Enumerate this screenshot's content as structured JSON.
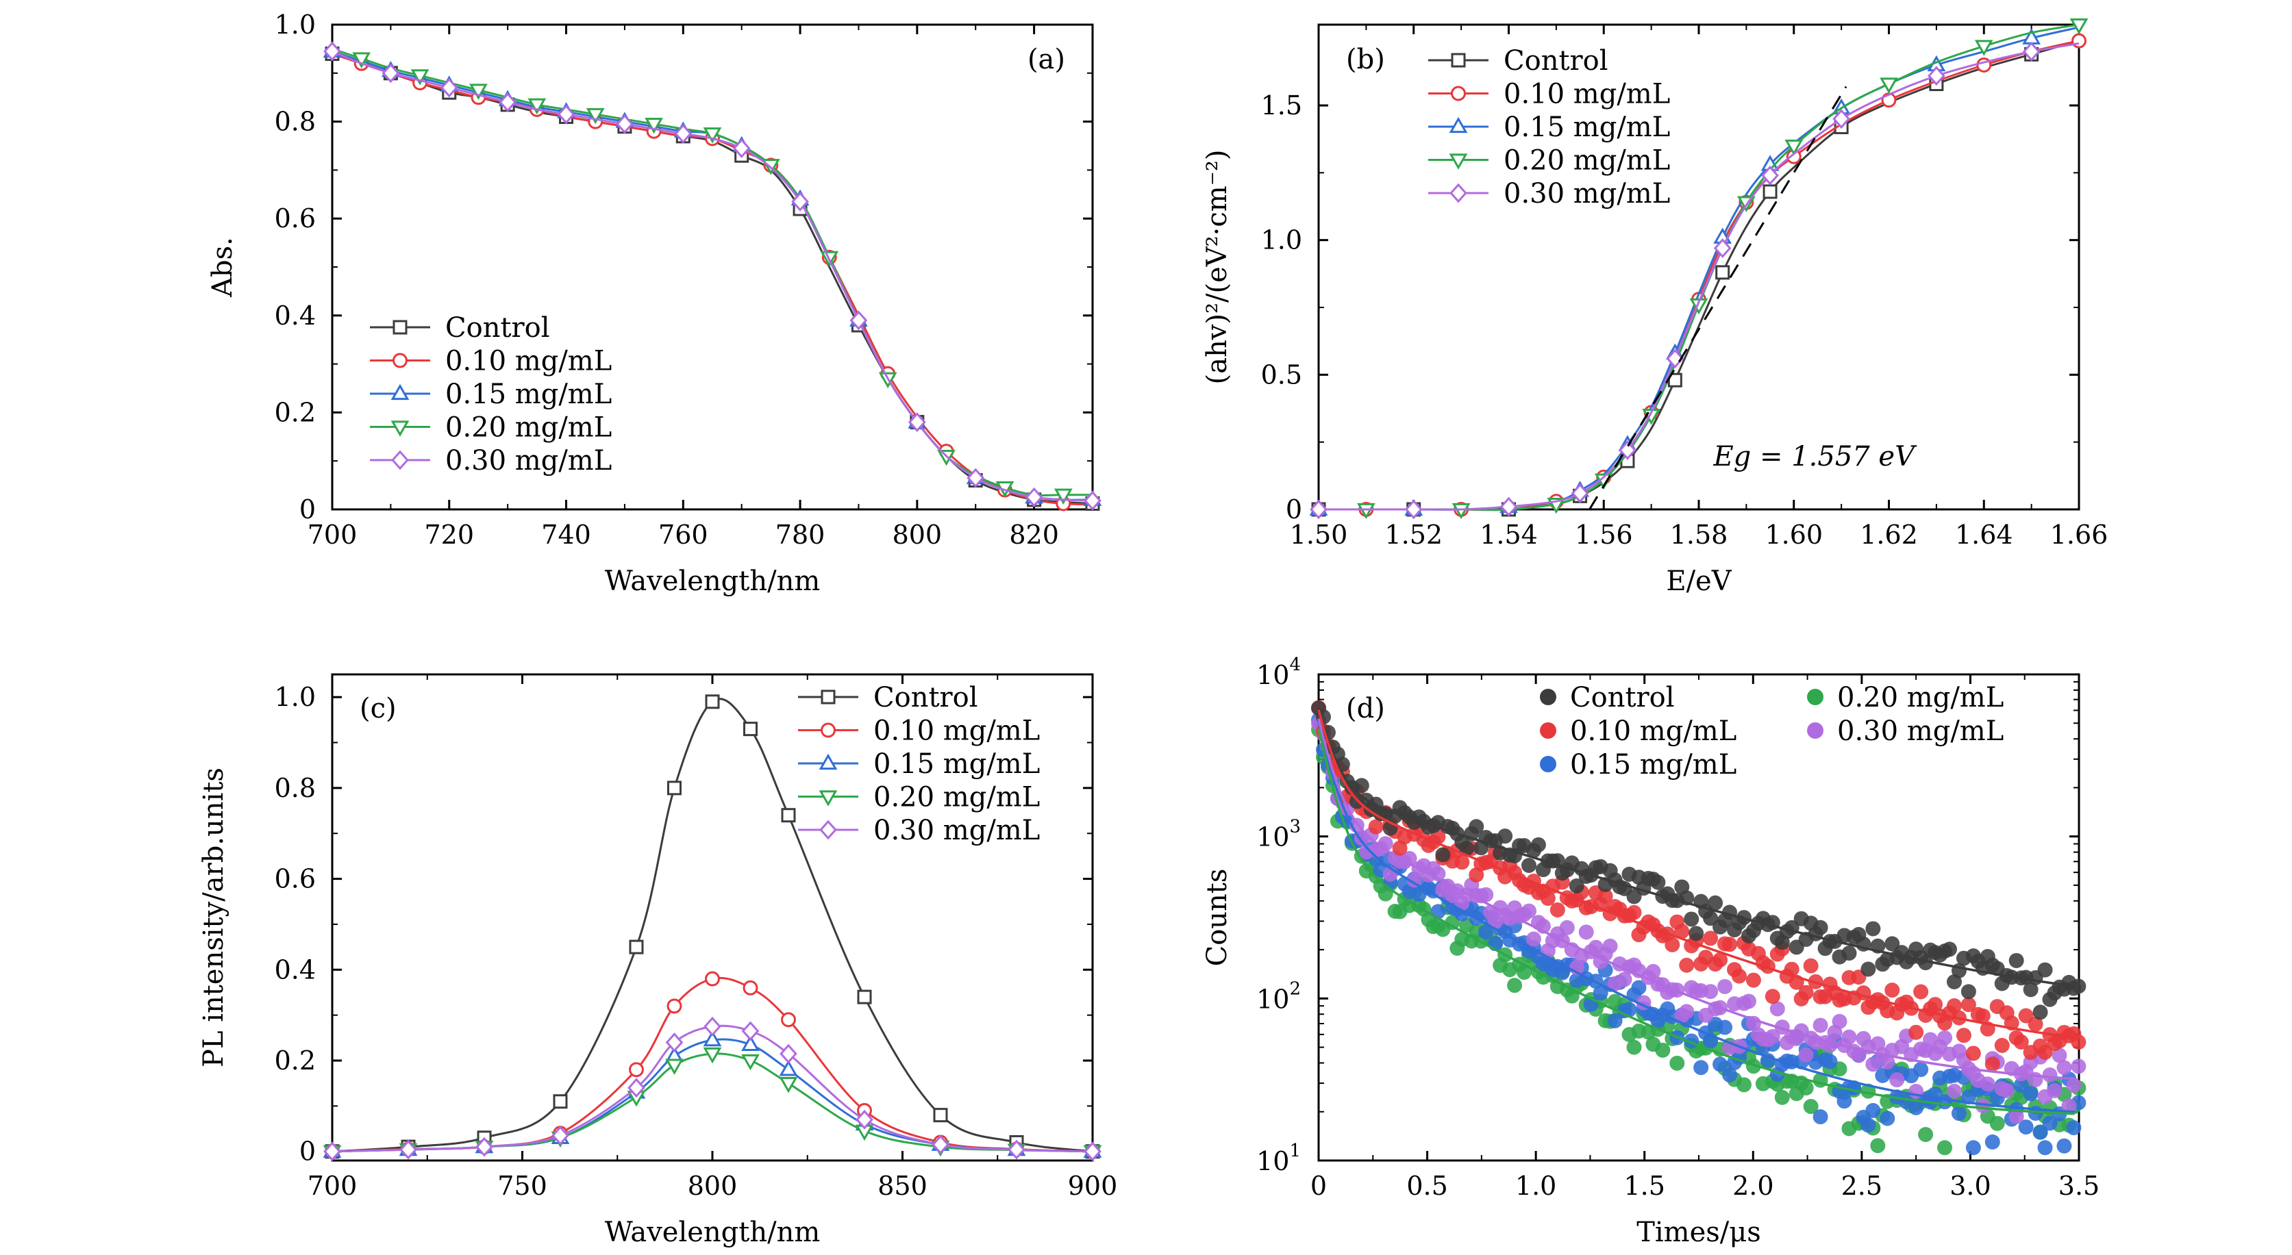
{
  "legend_labels": [
    "Control",
    "0.10 mg/mL",
    "0.15 mg/mL",
    "0.20 mg/mL",
    "0.30 mg/mL"
  ],
  "colors": {
    "Control": "#3c3c3c",
    "0.10 mg/mL": "#e8373a",
    "0.15 mg/mL": "#2f6fd6",
    "0.20 mg/mL": "#2ea84a",
    "0.30 mg/mL": "#b06be0"
  },
  "chart_data": [
    {
      "panel": "(a)",
      "type": "line",
      "xlabel": "Wavelength/nm",
      "ylabel": "Abs.",
      "xlim": [
        700,
        830
      ],
      "ylim": [
        0,
        1.0
      ],
      "xticks": [
        "700",
        "720",
        "740",
        "760",
        "780",
        "800",
        "820"
      ],
      "yticks": [
        "0",
        "0.2",
        "0.4",
        "0.6",
        "0.8",
        "1.0"
      ],
      "x": [
        700,
        705,
        710,
        715,
        720,
        725,
        730,
        735,
        740,
        745,
        750,
        755,
        760,
        765,
        770,
        775,
        780,
        785,
        790,
        795,
        800,
        805,
        810,
        815,
        820,
        825,
        830
      ],
      "series": [
        {
          "name": "Control",
          "values": [
            0.94,
            0.92,
            0.9,
            0.88,
            0.86,
            0.85,
            0.835,
            0.82,
            0.81,
            0.8,
            0.79,
            0.78,
            0.77,
            0.76,
            0.73,
            0.7,
            0.62,
            0.5,
            0.38,
            0.27,
            0.18,
            0.11,
            0.06,
            0.035,
            0.02,
            0.015,
            0.012
          ]
        },
        {
          "name": "0.10 mg/mL",
          "values": [
            0.94,
            0.92,
            0.9,
            0.88,
            0.865,
            0.85,
            0.84,
            0.825,
            0.81,
            0.8,
            0.79,
            0.78,
            0.77,
            0.765,
            0.74,
            0.71,
            0.64,
            0.52,
            0.4,
            0.28,
            0.19,
            0.12,
            0.07,
            0.04,
            0.02,
            0.012,
            0.01
          ]
        },
        {
          "name": "0.15 mg/mL",
          "values": [
            0.945,
            0.925,
            0.905,
            0.89,
            0.875,
            0.86,
            0.845,
            0.83,
            0.82,
            0.81,
            0.8,
            0.79,
            0.78,
            0.775,
            0.75,
            0.71,
            0.64,
            0.52,
            0.39,
            0.27,
            0.18,
            0.11,
            0.065,
            0.04,
            0.025,
            0.02,
            0.02
          ]
        },
        {
          "name": "0.20 mg/mL",
          "values": [
            0.95,
            0.93,
            0.91,
            0.895,
            0.88,
            0.865,
            0.85,
            0.835,
            0.825,
            0.815,
            0.805,
            0.795,
            0.785,
            0.775,
            0.75,
            0.71,
            0.64,
            0.52,
            0.39,
            0.27,
            0.18,
            0.11,
            0.07,
            0.045,
            0.03,
            0.03,
            0.03
          ]
        },
        {
          "name": "0.30 mg/mL",
          "values": [
            0.945,
            0.92,
            0.9,
            0.885,
            0.87,
            0.855,
            0.84,
            0.825,
            0.815,
            0.805,
            0.795,
            0.785,
            0.775,
            0.765,
            0.745,
            0.705,
            0.635,
            0.515,
            0.39,
            0.27,
            0.18,
            0.11,
            0.065,
            0.04,
            0.025,
            0.02,
            0.018
          ]
        }
      ]
    },
    {
      "panel": "(b)",
      "type": "line",
      "xlabel": "E/eV",
      "ylabel": "(ahv)²/(eV²·cm⁻²)",
      "xlim": [
        1.5,
        1.66
      ],
      "ylim": [
        0,
        1.8
      ],
      "xticks": [
        "1.50",
        "1.52",
        "1.54",
        "1.56",
        "1.58",
        "1.60",
        "1.62",
        "1.64",
        "1.66"
      ],
      "yticks": [
        "0",
        "0.5",
        "1.0",
        "1.5"
      ],
      "annotation": "Eg = 1.557 eV",
      "x": [
        1.5,
        1.51,
        1.52,
        1.53,
        1.54,
        1.55,
        1.555,
        1.56,
        1.565,
        1.57,
        1.575,
        1.58,
        1.585,
        1.59,
        1.595,
        1.6,
        1.61,
        1.62,
        1.63,
        1.64,
        1.65,
        1.66
      ],
      "series": [
        {
          "name": "Control",
          "values": [
            0,
            0,
            0,
            0,
            0,
            0.02,
            0.05,
            0.1,
            0.18,
            0.3,
            0.48,
            0.68,
            0.88,
            1.05,
            1.18,
            1.27,
            1.42,
            1.51,
            1.58,
            1.64,
            1.69,
            1.74
          ]
        },
        {
          "name": "0.10 mg/mL",
          "values": [
            0,
            0,
            0,
            0,
            0,
            0.03,
            0.06,
            0.12,
            0.22,
            0.36,
            0.56,
            0.78,
            0.99,
            1.14,
            1.24,
            1.31,
            1.43,
            1.52,
            1.59,
            1.65,
            1.7,
            1.74
          ]
        },
        {
          "name": "0.15 mg/mL",
          "values": [
            0,
            0,
            0,
            0,
            0.01,
            0.03,
            0.07,
            0.13,
            0.24,
            0.38,
            0.58,
            0.8,
            1.01,
            1.17,
            1.28,
            1.36,
            1.49,
            1.58,
            1.65,
            1.7,
            1.75,
            1.79
          ]
        },
        {
          "name": "0.20 mg/mL",
          "values": [
            0,
            0,
            0,
            0,
            0,
            0.02,
            0.05,
            0.11,
            0.21,
            0.35,
            0.54,
            0.76,
            0.97,
            1.14,
            1.26,
            1.35,
            1.49,
            1.58,
            1.66,
            1.72,
            1.77,
            1.8
          ]
        },
        {
          "name": "0.30 mg/mL",
          "values": [
            0,
            0,
            0,
            0,
            0.01,
            0.03,
            0.06,
            0.12,
            0.22,
            0.36,
            0.56,
            0.77,
            0.97,
            1.13,
            1.24,
            1.32,
            1.45,
            1.54,
            1.61,
            1.66,
            1.7,
            1.73
          ]
        }
      ],
      "fit_line": {
        "x": [
          1.557,
          1.611
        ],
        "y": [
          0,
          1.57
        ]
      }
    },
    {
      "panel": "(c)",
      "type": "line",
      "xlabel": "Wavelength/nm",
      "ylabel": "PL intensity/arb.units",
      "xlim": [
        700,
        900
      ],
      "ylim": [
        0,
        1.05
      ],
      "xticks": [
        "700",
        "750",
        "800",
        "850",
        "900"
      ],
      "yticks": [
        "0",
        "0.2",
        "0.4",
        "0.6",
        "0.8",
        "1.0"
      ],
      "x": [
        700,
        720,
        740,
        760,
        780,
        790,
        800,
        810,
        820,
        840,
        860,
        880,
        900
      ],
      "series": [
        {
          "name": "Control",
          "values": [
            0.0,
            0.01,
            0.03,
            0.11,
            0.45,
            0.8,
            0.99,
            0.93,
            0.74,
            0.34,
            0.08,
            0.02,
            0.0
          ]
        },
        {
          "name": "0.10 mg/mL",
          "values": [
            0.0,
            0.005,
            0.01,
            0.04,
            0.18,
            0.32,
            0.38,
            0.36,
            0.29,
            0.09,
            0.02,
            0.005,
            0.0
          ]
        },
        {
          "name": "0.15 mg/mL",
          "values": [
            0.0,
            0.004,
            0.01,
            0.03,
            0.13,
            0.21,
            0.245,
            0.235,
            0.18,
            0.06,
            0.015,
            0.004,
            0.0
          ]
        },
        {
          "name": "0.20 mg/mL",
          "values": [
            0.0,
            0.004,
            0.01,
            0.03,
            0.12,
            0.19,
            0.215,
            0.2,
            0.15,
            0.045,
            0.01,
            0.003,
            0.0
          ]
        },
        {
          "name": "0.30 mg/mL",
          "values": [
            0.0,
            0.004,
            0.01,
            0.035,
            0.14,
            0.24,
            0.275,
            0.265,
            0.215,
            0.07,
            0.015,
            0.004,
            0.0
          ]
        }
      ]
    },
    {
      "panel": "(d)",
      "type": "scatter",
      "xlabel": "Times/μs",
      "ylabel": "Counts",
      "xlim": [
        0,
        3.5
      ],
      "ylim_log10": [
        1,
        4
      ],
      "xticks": [
        "0",
        "0.5",
        "1.0",
        "1.5",
        "2.0",
        "2.5",
        "3.0",
        "3.5"
      ],
      "yticks": [
        "10",
        "10",
        "10",
        "10"
      ],
      "ytick_exponents": [
        "1",
        "2",
        "3",
        "4"
      ],
      "yscale": "log",
      "series": [
        {
          "name": "Control",
          "A1": 4200,
          "tau1": 0.06,
          "A2": 1900,
          "tau2": 0.95,
          "offset": 70
        },
        {
          "name": "0.10 mg/mL",
          "A1": 4200,
          "tau1": 0.06,
          "A2": 1800,
          "tau2": 0.75,
          "offset": 40
        },
        {
          "name": "0.15 mg/mL",
          "A1": 4000,
          "tau1": 0.06,
          "A2": 1100,
          "tau2": 0.55,
          "offset": 18
        },
        {
          "name": "0.20 mg/mL",
          "A1": 3800,
          "tau1": 0.06,
          "A2": 800,
          "tau2": 0.55,
          "offset": 18
        },
        {
          "name": "0.30 mg/mL",
          "A1": 4000,
          "tau1": 0.06,
          "A2": 1300,
          "tau2": 0.6,
          "offset": 28
        }
      ]
    }
  ]
}
